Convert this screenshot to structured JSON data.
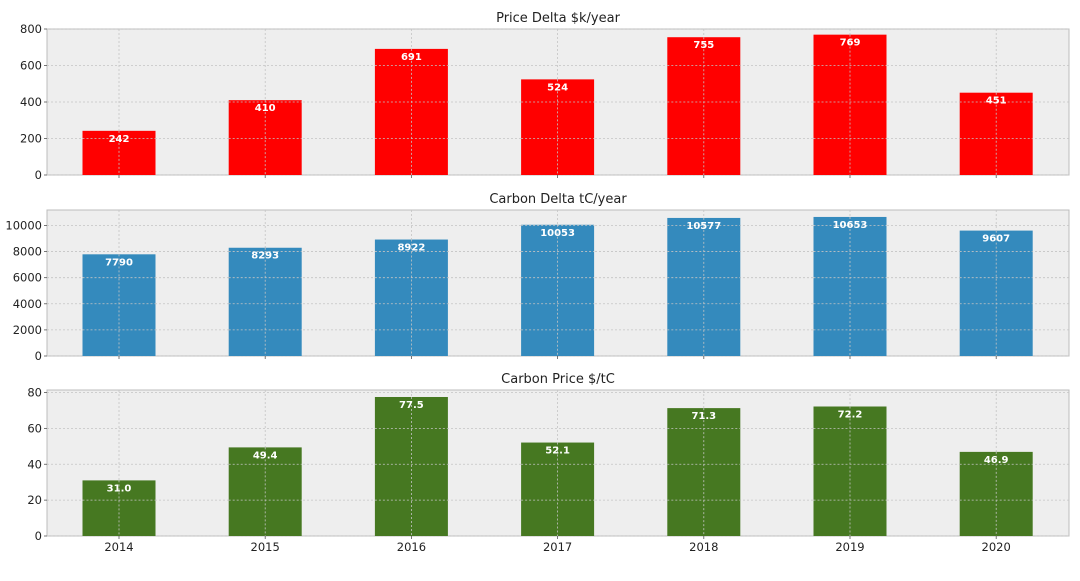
{
  "chart_data": [
    {
      "type": "bar",
      "title": "Price Delta $k/year",
      "categories": [
        "2014",
        "2015",
        "2016",
        "2017",
        "2018",
        "2019",
        "2020"
      ],
      "values": [
        242,
        410,
        691,
        524,
        755,
        769,
        451
      ],
      "labels": [
        "242",
        "410",
        "691",
        "524",
        "755",
        "769",
        "451"
      ],
      "ylim": [
        0,
        800
      ],
      "yticks": [
        0,
        200,
        400,
        600,
        800
      ],
      "color": "#ff0000",
      "grid": true,
      "show_x_tick_labels": false
    },
    {
      "type": "bar",
      "title": "Carbon Delta tC/year",
      "categories": [
        "2014",
        "2015",
        "2016",
        "2017",
        "2018",
        "2019",
        "2020"
      ],
      "values": [
        7790,
        8293,
        8922,
        10053,
        10577,
        10653,
        9607
      ],
      "labels": [
        "7790",
        "8293",
        "8922",
        "10053",
        "10577",
        "10653",
        "9607"
      ],
      "ylim": [
        0,
        11185
      ],
      "yticks": [
        0,
        2000,
        4000,
        6000,
        8000,
        10000
      ],
      "color": "#348abd",
      "grid": true,
      "show_x_tick_labels": false
    },
    {
      "type": "bar",
      "title": "Carbon Price $/tC",
      "categories": [
        "2014",
        "2015",
        "2016",
        "2017",
        "2018",
        "2019",
        "2020"
      ],
      "values": [
        31.0,
        49.4,
        77.5,
        52.1,
        71.3,
        72.2,
        46.9
      ],
      "labels": [
        "31.0",
        "49.4",
        "77.5",
        "52.1",
        "71.3",
        "72.2",
        "46.9"
      ],
      "ylim": [
        0,
        81.4
      ],
      "yticks": [
        0,
        20,
        40,
        60,
        80
      ],
      "color": "#467821",
      "grid": true,
      "show_x_tick_labels": true
    }
  ]
}
